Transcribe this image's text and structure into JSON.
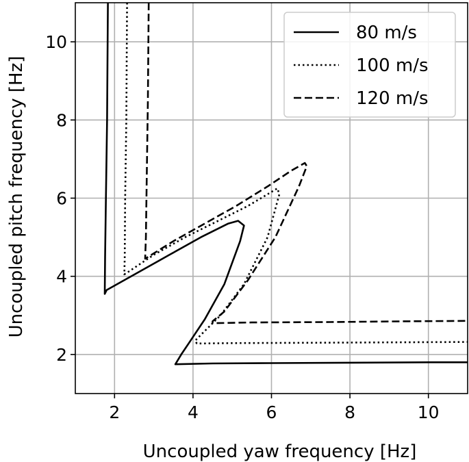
{
  "chart_data": {
    "type": "line",
    "xlabel": "Uncoupled yaw frequency [Hz]",
    "ylabel": "Uncoupled pitch frequency [Hz]",
    "xlim": [
      1,
      11
    ],
    "ylim": [
      1,
      11
    ],
    "xticks": [
      2,
      4,
      6,
      8,
      10
    ],
    "yticks": [
      2,
      4,
      6,
      8,
      10
    ],
    "xtick_labels": [
      "2",
      "4",
      "6",
      "8",
      "10"
    ],
    "ytick_labels": [
      "2",
      "4",
      "6",
      "8",
      "10"
    ],
    "grid": true,
    "legend_position": "top-right",
    "series": [
      {
        "name": "80 m/s",
        "style": "solid",
        "x": [
          1.83,
          1.81,
          1.78,
          1.76,
          1.75,
          1.8,
          2.6,
          3.4,
          4.2,
          4.9,
          5.15,
          5.3,
          5.2,
          4.8,
          4.3,
          3.9,
          3.7,
          3.55,
          4.5,
          6.0,
          8.0,
          10.0,
          11.0
        ],
        "y": [
          11.0,
          8.0,
          6.0,
          4.5,
          3.55,
          3.65,
          4.1,
          4.55,
          5.0,
          5.35,
          5.42,
          5.3,
          4.9,
          3.8,
          2.9,
          2.3,
          2.0,
          1.75,
          1.77,
          1.78,
          1.79,
          1.8,
          1.8
        ]
      },
      {
        "name": "100 m/s",
        "style": "dotted",
        "x": [
          2.32,
          2.3,
          2.27,
          2.26,
          2.25,
          2.3,
          3.0,
          3.8,
          4.6,
          5.4,
          5.9,
          6.15,
          6.2,
          5.9,
          5.3,
          4.7,
          4.3,
          4.05,
          4.1,
          5.0,
          7.0,
          9.0,
          11.0
        ],
        "y": [
          11.0,
          8.0,
          6.0,
          4.5,
          4.05,
          4.08,
          4.55,
          5.0,
          5.4,
          5.8,
          6.1,
          6.25,
          6.1,
          5.0,
          3.8,
          3.0,
          2.6,
          2.35,
          2.28,
          2.29,
          2.3,
          2.31,
          2.32
        ]
      },
      {
        "name": "120 m/s",
        "style": "dashed",
        "x": [
          2.87,
          2.85,
          2.82,
          2.8,
          2.78,
          3.5,
          4.3,
          5.1,
          5.9,
          6.5,
          6.85,
          6.9,
          6.7,
          6.1,
          5.4,
          4.8,
          4.5,
          4.5,
          5.5,
          7.5,
          9.5,
          11.0
        ],
        "y": [
          11.0,
          8.5,
          6.5,
          5.0,
          4.45,
          4.9,
          5.35,
          5.8,
          6.3,
          6.7,
          6.9,
          6.82,
          6.3,
          5.0,
          3.9,
          3.1,
          2.85,
          2.8,
          2.82,
          2.83,
          2.85,
          2.86
        ]
      }
    ]
  }
}
